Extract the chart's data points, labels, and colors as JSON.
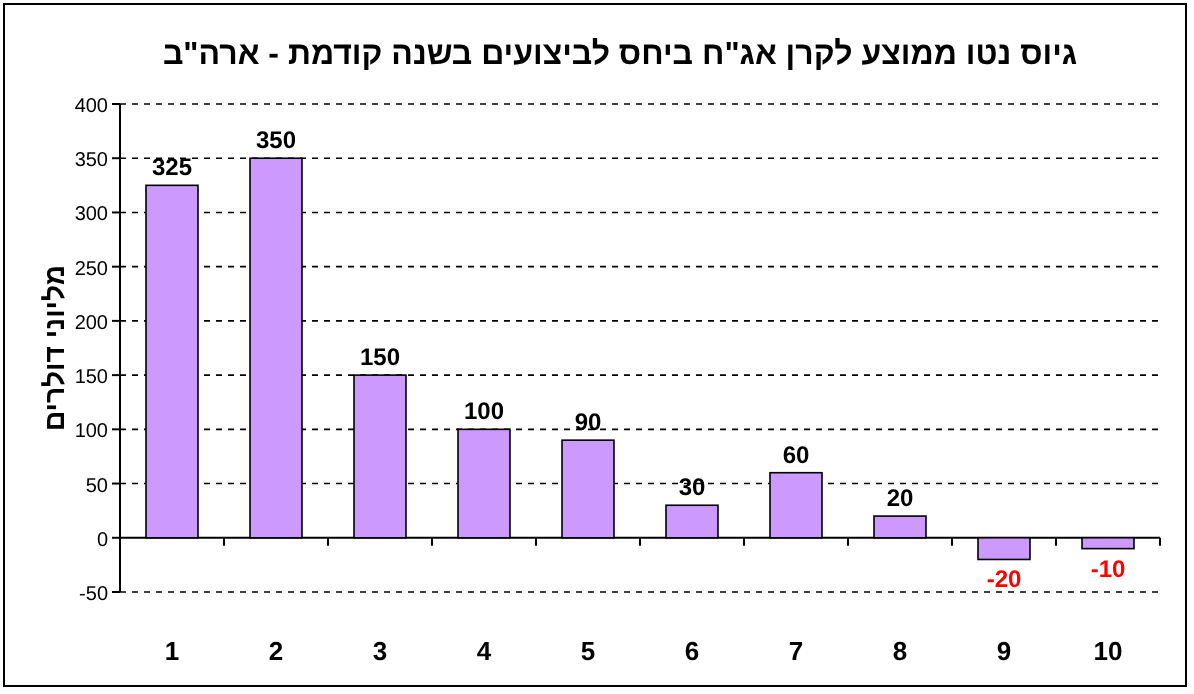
{
  "chart_data": {
    "type": "bar",
    "title": "גיוס נטו ממוצע לקרן אג\"ח ביחס לביצועים בשנה קודמת - ארה\"ב",
    "ylabel": "מליוני דולרים",
    "categories": [
      "1",
      "2",
      "3",
      "4",
      "5",
      "6",
      "7",
      "8",
      "9",
      "10"
    ],
    "values": [
      325,
      350,
      150,
      100,
      90,
      30,
      60,
      20,
      -20,
      -10
    ],
    "color": "#cc99ff",
    "ylim": [
      -50,
      400
    ],
    "yticks": [
      -50,
      0,
      50,
      100,
      150,
      200,
      250,
      300,
      350,
      400
    ],
    "grid": "y",
    "data_labels": true
  }
}
